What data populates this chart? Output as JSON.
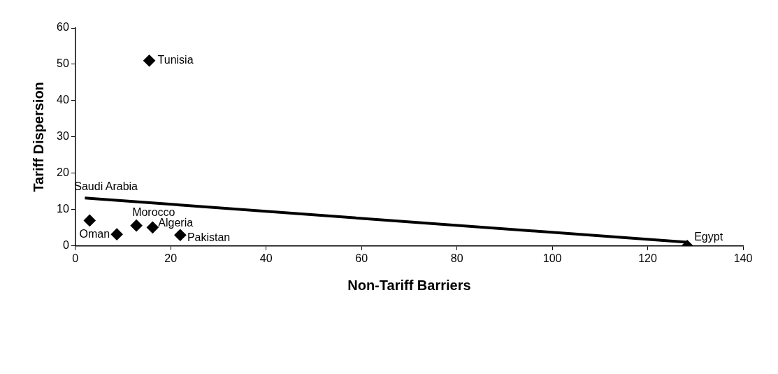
{
  "chart_data": {
    "type": "scatter",
    "xlabel": "Non-Tariff Barriers",
    "ylabel": "Tariff Dispersion",
    "xlim": [
      0,
      140
    ],
    "xticks": [
      0,
      20,
      40,
      60,
      80,
      100,
      120,
      140
    ],
    "ylim": [
      0,
      60
    ],
    "yticks": [
      0,
      10,
      20,
      30,
      40,
      50,
      60
    ],
    "grid": false,
    "legend": false,
    "marker": "diamond",
    "series": [
      {
        "type": "scatter",
        "color": "#000000",
        "x": [
          3.0,
          8.7,
          12.8,
          16.2,
          22,
          128.3,
          15.5
        ],
        "values": [
          7.0,
          3.2,
          5.6,
          5.1,
          3,
          0,
          51
        ]
      },
      {
        "type": "line",
        "color": "#000000",
        "marker": "none",
        "line_style": "solid",
        "x": [
          2,
          128.3
        ],
        "values": [
          13.2,
          1.0
        ]
      }
    ],
    "annotations": [
      {
        "text": "Saudi Arabia",
        "x": 3.0,
        "y": 7.0
      },
      {
        "text": "Oman",
        "x": 8.7,
        "y": 3.2
      },
      {
        "text": "Morocco",
        "x": 12.8,
        "y": 5.6
      },
      {
        "text": "Algeria",
        "x": 16.2,
        "y": 5.1
      },
      {
        "text": "Pakistan",
        "x": 22,
        "y": 3
      },
      {
        "text": "Egypt",
        "x": 128.3,
        "y": 0
      },
      {
        "text": "Tunisia",
        "x": 15.5,
        "y": 51
      }
    ]
  }
}
